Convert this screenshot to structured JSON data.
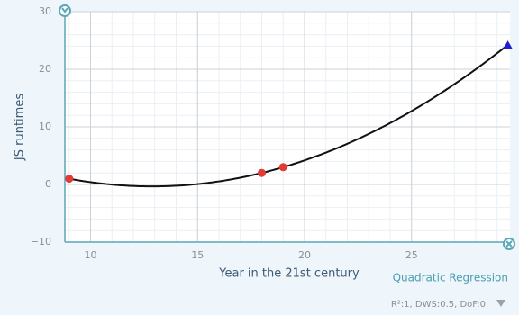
{
  "chart_data": {
    "type": "scatter",
    "xlabel": "Year in the 21st century",
    "ylabel": "JS runtimes",
    "series": [
      {
        "color": "#e53935",
        "x": [
          9,
          18,
          19
        ],
        "values": [
          1,
          2,
          3
        ]
      }
    ],
    "prediction": {
      "x": 29.5,
      "y": 24.2,
      "color": "#1f1fd6"
    },
    "regression_label": "Quadratic Regression",
    "stats": "R²:1, DWS:0.5, DoF:0",
    "xlim": [
      8.8,
      29.6
    ],
    "ylim": [
      -10,
      30
    ],
    "xticks": [
      10,
      15,
      20,
      25
    ],
    "yticks": [
      {
        "value": -10,
        "label": "−10"
      },
      0,
      10,
      20,
      30
    ],
    "grid": true
  }
}
